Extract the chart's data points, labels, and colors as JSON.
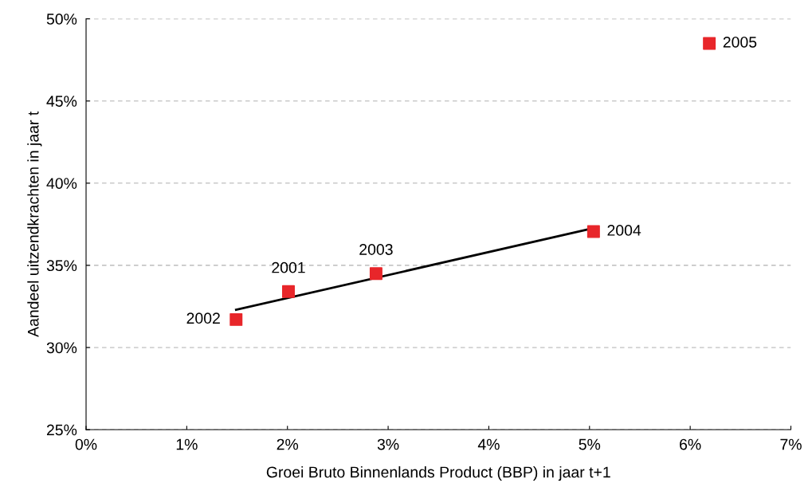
{
  "chart_data": {
    "type": "scatter",
    "xlabel": "Groei Bruto Binnenlands Product (BBP) in jaar t+1",
    "ylabel": "Aandeel uitzendkrachten in jaar t",
    "series": [
      {
        "color": "#e8262a",
        "marker": "square",
        "x": [
          2.01,
          1.49,
          2.88,
          5.04,
          6.19
        ],
        "values": [
          33.4,
          31.7,
          34.5,
          37.05,
          48.5
        ]
      },
      {
        "type": "line",
        "color": "#000000",
        "x": [
          1.49,
          5.04
        ],
        "values": [
          32.3,
          37.26
        ]
      }
    ],
    "annotations": [
      {
        "text": "2001",
        "x": 2.01,
        "y": 33.4
      },
      {
        "text": "2002",
        "x": 1.49,
        "y": 31.7
      },
      {
        "text": "2003",
        "x": 2.88,
        "y": 34.5
      },
      {
        "text": "2004",
        "x": 5.04,
        "y": 37.05
      },
      {
        "text": "2005",
        "x": 6.19,
        "y": 48.5
      }
    ],
    "xlim": [
      0,
      7
    ],
    "ylim": [
      25,
      50
    ],
    "xticks": [
      {
        "value": 0,
        "label": "0%"
      },
      {
        "value": 1,
        "label": "1%"
      },
      {
        "value": 2,
        "label": "2%"
      },
      {
        "value": 3,
        "label": "3%"
      },
      {
        "value": 4,
        "label": "4%"
      },
      {
        "value": 5,
        "label": "5%"
      },
      {
        "value": 6,
        "label": "6%"
      },
      {
        "value": 7,
        "label": "7%"
      }
    ],
    "yticks": [
      {
        "value": 25,
        "label": "25%"
      },
      {
        "value": 30,
        "label": "30%"
      },
      {
        "value": 35,
        "label": "35%"
      },
      {
        "value": 40,
        "label": "40%"
      },
      {
        "value": 45,
        "label": "45%"
      },
      {
        "value": 50,
        "label": "50%"
      }
    ],
    "grid": "y",
    "legend": false
  }
}
